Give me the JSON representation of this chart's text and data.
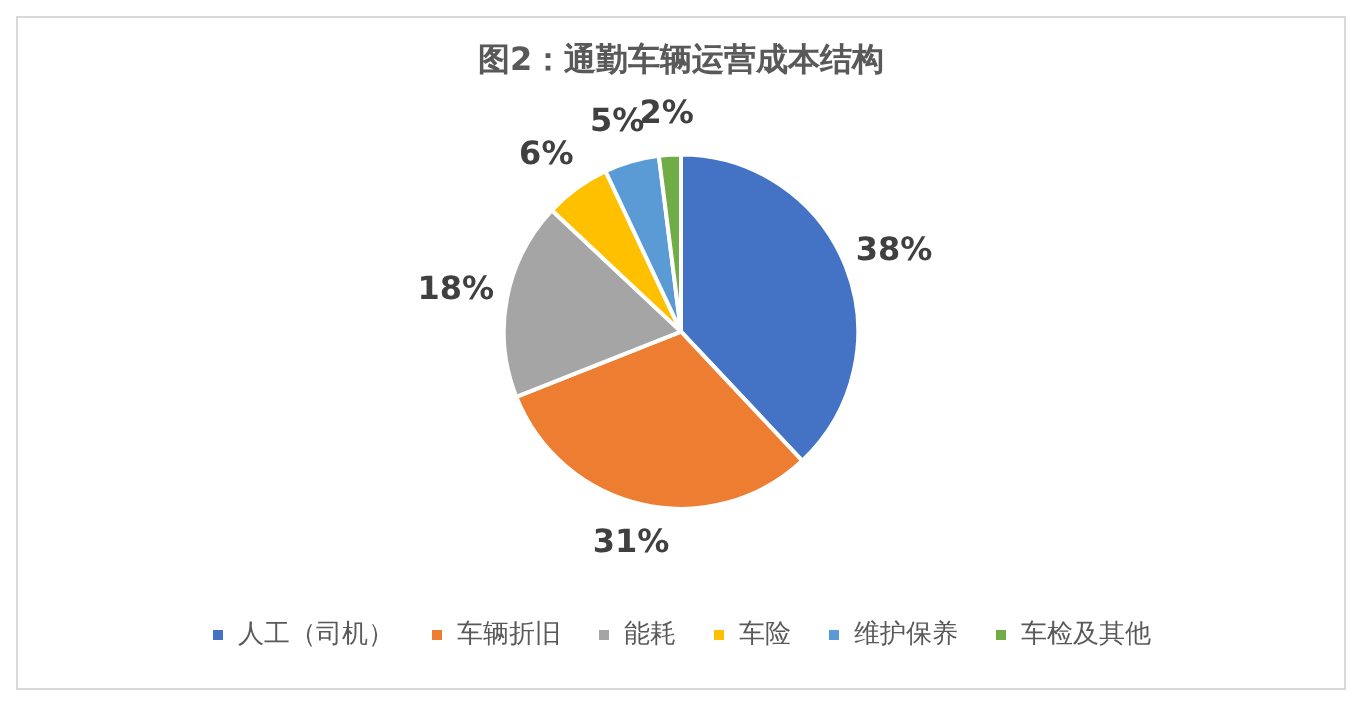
{
  "chart_data": {
    "type": "pie",
    "title": "图2：通勤车辆运营成本结构",
    "categories": [
      "人工（司机）",
      "车辆折旧",
      "能耗",
      "车险",
      "维护保养",
      "车检及其他"
    ],
    "values": [
      38,
      31,
      18,
      6,
      5,
      2
    ],
    "colors": [
      "#4472c4",
      "#ed7d31",
      "#a5a5a5",
      "#ffc000",
      "#5b9bd5",
      "#70ad47"
    ],
    "value_labels": [
      "38%",
      "31%",
      "18%",
      "6%",
      "5%",
      "2%"
    ],
    "legend": "bottom"
  }
}
